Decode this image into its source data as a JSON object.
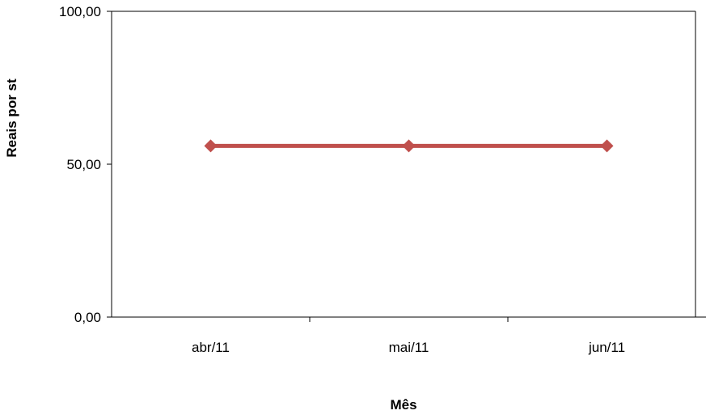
{
  "chart_data": {
    "type": "line",
    "title": "",
    "xlabel": "Mês",
    "ylabel": "Reais por  st",
    "categories": [
      "abr/11",
      "mai/11",
      "jun/11"
    ],
    "series": [
      {
        "values": [
          56.0,
          56.0,
          56.0
        ],
        "color": "#C0504D",
        "marker": "diamond"
      }
    ],
    "ylim": [
      0,
      100
    ],
    "yticks": [
      0,
      50,
      100
    ],
    "ytick_labels": [
      "0,00",
      "50,00",
      "100,00"
    ],
    "grid": false,
    "legend": "none"
  }
}
